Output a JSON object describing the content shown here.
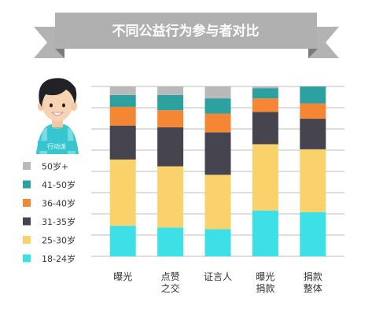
{
  "chart_data": {
    "type": "bar",
    "stacked": true,
    "title": "不同公益行为参与者对比",
    "categories": [
      [
        "曝光"
      ],
      [
        "点赞",
        "之交"
      ],
      [
        "证言人"
      ],
      [
        "曝光",
        "捐款"
      ],
      [
        "捐款",
        "整体"
      ]
    ],
    "ylim": [
      0,
      100
    ],
    "grid": true,
    "legend_position": "left",
    "series": [
      {
        "name": "18-24岁",
        "color": "#3ee0e8",
        "values": [
          18,
          17,
          16,
          27,
          26
        ]
      },
      {
        "name": "25-30岁",
        "color": "#fad26b",
        "values": [
          39,
          36,
          32,
          39,
          37
        ]
      },
      {
        "name": "31-35岁",
        "color": "#45444f",
        "values": [
          20,
          23,
          25,
          19,
          18
        ]
      },
      {
        "name": "36-40岁",
        "color": "#f58634",
        "values": [
          11,
          10,
          11,
          8,
          9
        ]
      },
      {
        "name": "41-50岁",
        "color": "#2da19f",
        "values": [
          7,
          9,
          9,
          6,
          10
        ]
      },
      {
        "name": "50岁+",
        "color": "#b9b9b9",
        "values": [
          5,
          5,
          7,
          1,
          0
        ]
      }
    ]
  },
  "badge": {
    "label": "行动派"
  },
  "colors": {
    "title_bg": "#b0b0b0",
    "title_fold": "#777777",
    "grid": "#bcbcbc"
  }
}
